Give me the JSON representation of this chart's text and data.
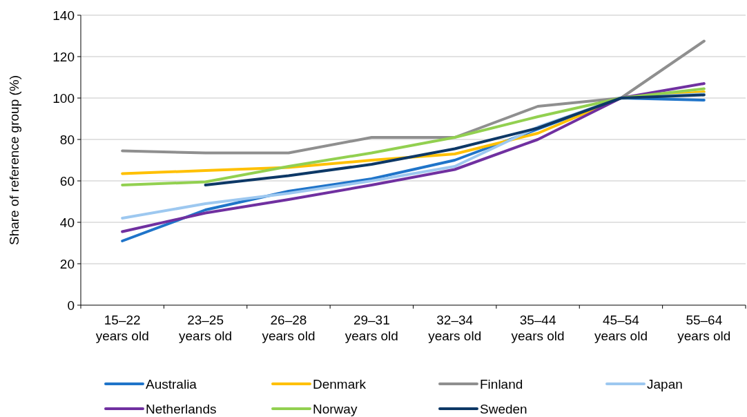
{
  "chart_data": {
    "type": "line",
    "ylabel": "Share of reference group (%)",
    "categories": [
      "15–22\nyears old",
      "23–25\nyears old",
      "26–28\nyears old",
      "29–31\nyears old",
      "32–34\nyears old",
      "35–44\nyears old",
      "45–54\nyears old",
      "55–64\nyears old"
    ],
    "series": [
      {
        "name": "Australia",
        "color": "#1f74c9",
        "values": [
          31,
          46,
          55,
          61,
          70,
          85,
          100,
          99
        ]
      },
      {
        "name": "Denmark",
        "color": "#ffc000",
        "values": [
          63.5,
          65,
          66.5,
          70,
          73,
          83,
          100,
          103
        ]
      },
      {
        "name": "Finland",
        "color": "#8f8f8f",
        "values": [
          74.5,
          73.5,
          73.5,
          81,
          81,
          96,
          100,
          127.5
        ]
      },
      {
        "name": "Japan",
        "color": "#9dc8f0",
        "values": [
          42,
          49,
          54,
          60,
          67,
          86,
          100,
          102
        ]
      },
      {
        "name": "Netherlands",
        "color": "#7030a0",
        "values": [
          35.5,
          44.5,
          51,
          58,
          65.5,
          80,
          100,
          107
        ]
      },
      {
        "name": "Norway",
        "color": "#92d050",
        "values": [
          58,
          59.5,
          67,
          73.5,
          81,
          91,
          100,
          104.5
        ]
      },
      {
        "name": "Sweden",
        "color": "#0d3866",
        "values": [
          null,
          58,
          62.5,
          68,
          75.5,
          85.5,
          100,
          101.5
        ]
      }
    ],
    "ylim": [
      0,
      140
    ],
    "yticks": [
      0,
      20,
      40,
      60,
      80,
      100,
      120,
      140
    ],
    "grid": "y",
    "legend": "bottom",
    "marker": "none",
    "line_style": "solid"
  }
}
